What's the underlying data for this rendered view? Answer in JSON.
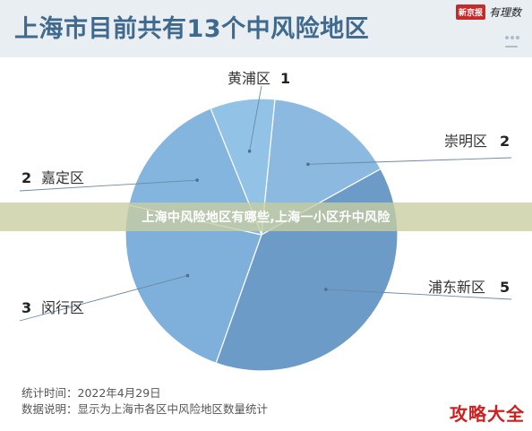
{
  "header": {
    "title": "上海市目前共有13个中风险地区",
    "source_logo_a": "新京报",
    "source_logo_b": "有理数"
  },
  "banner": {
    "text": "上海中风险地区有哪些,上海一小区升中风险"
  },
  "footnotes": {
    "time": "统计时间：2022年4月29日",
    "explain": "数据说明：显示为上海市各区中风险地区数量统计"
  },
  "watermark": "攻略大全",
  "chart_data": {
    "type": "pie",
    "title": "上海市目前共有13个中风险地区",
    "slices": [
      {
        "label": "黄浦区",
        "value": 1,
        "color": "#92c3e6"
      },
      {
        "label": "崇明区",
        "value": 2,
        "color": "#8bb9e0"
      },
      {
        "label": "浦东新区",
        "value": 5,
        "color": "#6d9bc8"
      },
      {
        "label": "闵行区",
        "value": 3,
        "color": "#7fb0dc"
      },
      {
        "label": "嘉定区",
        "value": 2,
        "color": "#84b5de"
      }
    ],
    "total": 13,
    "display_labels": [
      {
        "name": "黄浦区",
        "num": "1"
      },
      {
        "name": "崇明区",
        "num": "2"
      },
      {
        "name": "浦东新区",
        "num": "5"
      },
      {
        "name": "闵行区",
        "num": "3"
      },
      {
        "name": "嘉定区",
        "num": "2"
      }
    ]
  }
}
